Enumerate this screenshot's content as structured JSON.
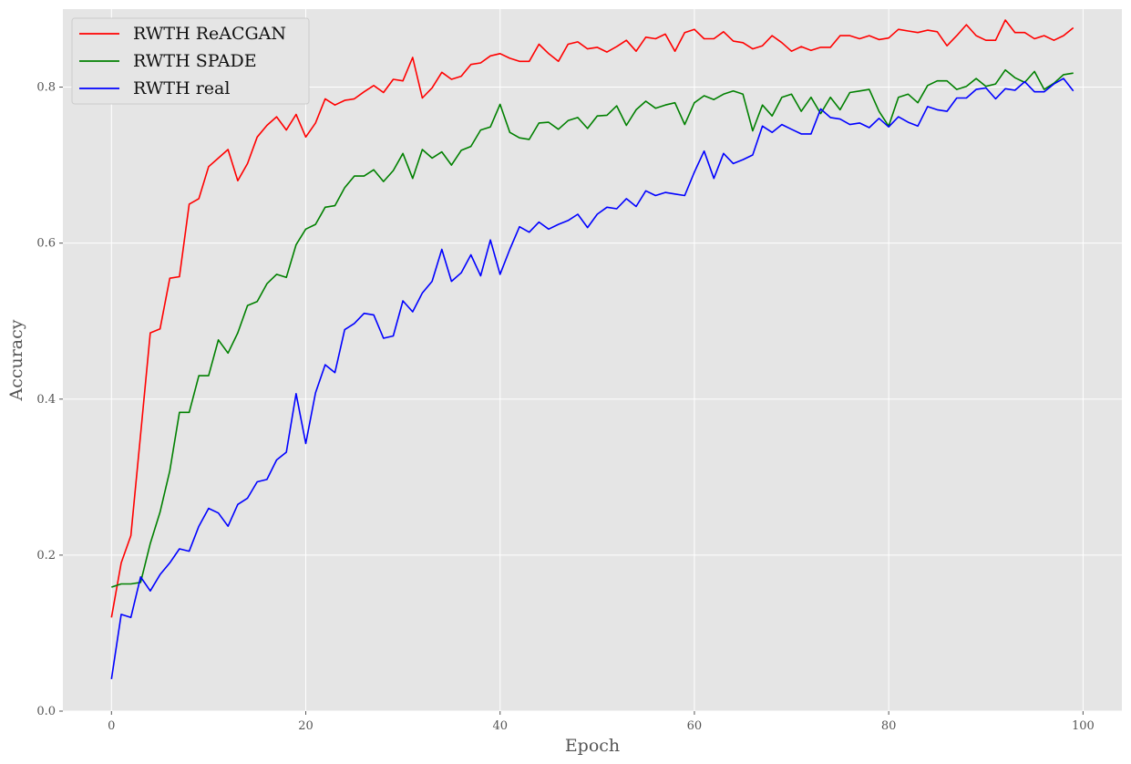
{
  "chart_data": {
    "type": "line",
    "title": "",
    "xlabel": "Epoch",
    "ylabel": "Accuracy",
    "xlim": [
      -5,
      104
    ],
    "ylim": [
      0,
      0.9
    ],
    "xticks": [
      0,
      20,
      40,
      60,
      80,
      100
    ],
    "yticks": [
      0.0,
      0.2,
      0.4,
      0.6,
      0.8
    ],
    "grid": true,
    "legend_position": "top-left",
    "x": [
      0,
      1,
      2,
      3,
      4,
      5,
      6,
      7,
      8,
      9,
      10,
      11,
      12,
      13,
      14,
      15,
      16,
      17,
      18,
      19,
      20,
      21,
      22,
      23,
      24,
      25,
      26,
      27,
      28,
      29,
      30,
      31,
      32,
      33,
      34,
      35,
      36,
      37,
      38,
      39,
      40,
      41,
      42,
      43,
      44,
      45,
      46,
      47,
      48,
      49,
      50,
      51,
      52,
      53,
      54,
      55,
      56,
      57,
      58,
      59,
      60,
      61,
      62,
      63,
      64,
      65,
      66,
      67,
      68,
      69,
      70,
      71,
      72,
      73,
      74,
      75,
      76,
      77,
      78,
      79,
      80,
      81,
      82,
      83,
      84,
      85,
      86,
      87,
      88,
      89,
      90,
      91,
      92,
      93,
      94,
      95,
      96,
      97,
      98,
      99
    ],
    "series": [
      {
        "name": "RWTH ReACGAN",
        "color": "#ff0000",
        "values": [
          0.12,
          0.19,
          0.225,
          0.355,
          0.485,
          0.49,
          0.555,
          0.557,
          0.65,
          0.657,
          0.698,
          0.709,
          0.72,
          0.68,
          0.702,
          0.736,
          0.751,
          0.762,
          0.745,
          0.765,
          0.736,
          0.754,
          0.785,
          0.777,
          0.783,
          0.785,
          0.794,
          0.802,
          0.793,
          0.81,
          0.808,
          0.838,
          0.786,
          0.799,
          0.819,
          0.81,
          0.814,
          0.829,
          0.831,
          0.84,
          0.843,
          0.837,
          0.833,
          0.833,
          0.855,
          0.843,
          0.833,
          0.855,
          0.858,
          0.849,
          0.851,
          0.845,
          0.852,
          0.86,
          0.846,
          0.864,
          0.862,
          0.868,
          0.846,
          0.87,
          0.874,
          0.862,
          0.862,
          0.871,
          0.859,
          0.857,
          0.849,
          0.853,
          0.866,
          0.857,
          0.846,
          0.852,
          0.847,
          0.851,
          0.851,
          0.866,
          0.866,
          0.862,
          0.866,
          0.861,
          0.863,
          0.874,
          0.872,
          0.87,
          0.873,
          0.871,
          0.853,
          0.866,
          0.88,
          0.866,
          0.86,
          0.86,
          0.886,
          0.87,
          0.87,
          0.862,
          0.866,
          0.86,
          0.866,
          0.876
        ]
      },
      {
        "name": "RWTH SPADE",
        "color": "#008000",
        "values": [
          0.159,
          0.163,
          0.163,
          0.165,
          0.215,
          0.255,
          0.308,
          0.383,
          0.383,
          0.43,
          0.43,
          0.476,
          0.459,
          0.485,
          0.52,
          0.525,
          0.548,
          0.56,
          0.556,
          0.598,
          0.618,
          0.624,
          0.646,
          0.648,
          0.671,
          0.686,
          0.686,
          0.694,
          0.679,
          0.693,
          0.715,
          0.683,
          0.72,
          0.709,
          0.717,
          0.7,
          0.719,
          0.724,
          0.745,
          0.749,
          0.778,
          0.742,
          0.735,
          0.733,
          0.754,
          0.755,
          0.746,
          0.757,
          0.761,
          0.747,
          0.763,
          0.764,
          0.776,
          0.751,
          0.771,
          0.782,
          0.773,
          0.777,
          0.78,
          0.752,
          0.78,
          0.789,
          0.784,
          0.791,
          0.795,
          0.791,
          0.744,
          0.777,
          0.763,
          0.787,
          0.791,
          0.769,
          0.787,
          0.766,
          0.787,
          0.771,
          0.793,
          0.795,
          0.797,
          0.769,
          0.75,
          0.787,
          0.791,
          0.78,
          0.802,
          0.808,
          0.808,
          0.797,
          0.801,
          0.811,
          0.801,
          0.804,
          0.822,
          0.812,
          0.806,
          0.82,
          0.797,
          0.805,
          0.816,
          0.818
        ]
      },
      {
        "name": "RWTH real",
        "color": "#0000ff",
        "values": [
          0.041,
          0.124,
          0.12,
          0.172,
          0.154,
          0.175,
          0.19,
          0.208,
          0.205,
          0.237,
          0.26,
          0.254,
          0.237,
          0.265,
          0.273,
          0.294,
          0.297,
          0.322,
          0.332,
          0.407,
          0.343,
          0.408,
          0.444,
          0.434,
          0.489,
          0.497,
          0.51,
          0.508,
          0.478,
          0.481,
          0.526,
          0.512,
          0.536,
          0.551,
          0.592,
          0.551,
          0.562,
          0.585,
          0.558,
          0.604,
          0.56,
          0.592,
          0.621,
          0.614,
          0.627,
          0.618,
          0.624,
          0.629,
          0.637,
          0.62,
          0.637,
          0.646,
          0.644,
          0.657,
          0.647,
          0.667,
          0.661,
          0.665,
          0.663,
          0.661,
          0.691,
          0.718,
          0.683,
          0.715,
          0.702,
          0.707,
          0.713,
          0.75,
          0.742,
          0.752,
          0.746,
          0.74,
          0.74,
          0.772,
          0.761,
          0.759,
          0.752,
          0.754,
          0.748,
          0.76,
          0.749,
          0.762,
          0.755,
          0.75,
          0.775,
          0.771,
          0.769,
          0.786,
          0.786,
          0.797,
          0.799,
          0.785,
          0.798,
          0.796,
          0.807,
          0.794,
          0.794,
          0.804,
          0.811,
          0.795
        ]
      }
    ]
  }
}
